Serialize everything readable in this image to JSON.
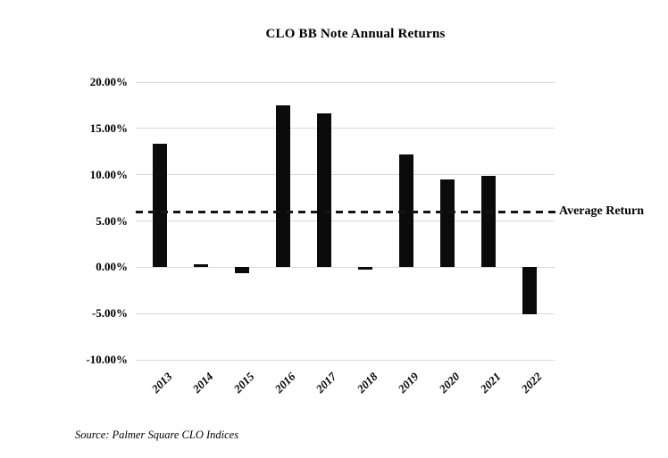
{
  "source": {
    "text": "Source: Palmer Square CLO Indices"
  },
  "chart_data": {
    "type": "bar",
    "title": "CLO BB Note Annual Returns",
    "categories": [
      "2013",
      "2014",
      "2015",
      "2016",
      "2017",
      "2018",
      "2019",
      "2020",
      "2021",
      "2022"
    ],
    "series": [
      {
        "name": "CLO BB Note Annual Return",
        "values": [
          13.3,
          0.3,
          -0.6,
          17.5,
          16.6,
          -0.3,
          12.2,
          9.5,
          9.9,
          -5.1
        ]
      }
    ],
    "xlabel": "",
    "ylabel": "",
    "ylim": [
      -10,
      20
    ],
    "yticks": [
      {
        "value": 20,
        "label": "20.00%"
      },
      {
        "value": 15,
        "label": "15.00%"
      },
      {
        "value": 10,
        "label": "10.00%"
      },
      {
        "value": 5,
        "label": "5.00%"
      },
      {
        "value": 0,
        "label": "0.00%"
      },
      {
        "value": -5,
        "label": "-5.00%"
      },
      {
        "value": -10,
        "label": "-10.00%"
      }
    ],
    "grid": true,
    "legend": "none",
    "bar_color": "#0b0b0b",
    "gridline_color": "#d9d9d9",
    "annotation": {
      "label": "Average Return",
      "value": 6.0,
      "line_style": "dashed",
      "line_color": "#141414"
    }
  }
}
